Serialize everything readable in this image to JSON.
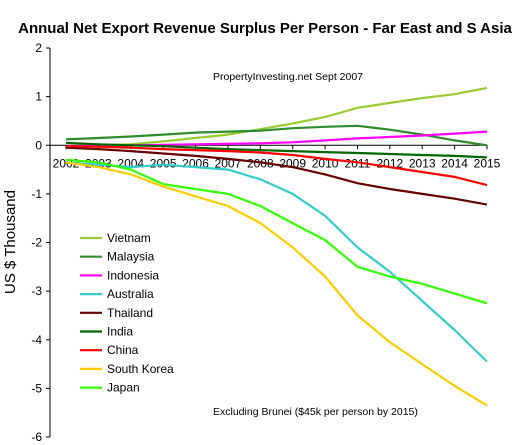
{
  "chart_data": {
    "type": "line",
    "title": "Annual Net Export Revenue Surplus Per Person -  Far East and S Asia",
    "ylabel": "US $ Thousand",
    "xlabel": "",
    "ylim": [
      -6,
      2
    ],
    "yticks": [
      2,
      1,
      0,
      -1,
      -2,
      -3,
      -4,
      -5,
      -6
    ],
    "categories": [
      "2002",
      "2003",
      "2004",
      "2005",
      "2006",
      "2007",
      "2008",
      "2009",
      "2010",
      "2011",
      "2012",
      "2013",
      "2014",
      "2015"
    ],
    "grid": false,
    "legend_position": "left",
    "annotations": [
      "PropertyInvesting.net    Sept 2007",
      "Excluding Brunei ($45k per person by 2015)"
    ],
    "series": [
      {
        "name": "Vietnam",
        "color": "#99cc33",
        "values": [
          -0.02,
          0.0,
          0.02,
          0.08,
          0.15,
          0.22,
          0.33,
          0.45,
          0.58,
          0.77,
          0.87,
          0.97,
          1.05,
          1.18
        ]
      },
      {
        "name": "Malaysia",
        "color": "#2e8b2e",
        "values": [
          0.12,
          0.15,
          0.18,
          0.22,
          0.26,
          0.28,
          0.3,
          0.35,
          0.38,
          0.4,
          0.32,
          0.22,
          0.1,
          0.0
        ]
      },
      {
        "name": "Indonesia",
        "color": "#ff00ff",
        "values": [
          -0.02,
          -0.01,
          0.0,
          0.01,
          0.02,
          0.03,
          0.04,
          0.06,
          0.1,
          0.14,
          0.17,
          0.2,
          0.24,
          0.28
        ]
      },
      {
        "name": "Australia",
        "color": "#33cccc",
        "values": [
          -0.35,
          -0.4,
          -0.45,
          -0.4,
          -0.45,
          -0.5,
          -0.7,
          -1.0,
          -1.45,
          -2.1,
          -2.6,
          -3.2,
          -3.8,
          -4.45
        ]
      },
      {
        "name": "Thailand",
        "color": "#660000",
        "values": [
          -0.05,
          -0.08,
          -0.12,
          -0.17,
          -0.22,
          -0.28,
          -0.35,
          -0.45,
          -0.6,
          -0.78,
          -0.9,
          -1.0,
          -1.1,
          -1.22
        ]
      },
      {
        "name": "India",
        "color": "#006600",
        "values": [
          0.05,
          0.02,
          0.0,
          -0.02,
          -0.05,
          -0.08,
          -0.1,
          -0.12,
          -0.14,
          -0.16,
          -0.18,
          -0.2,
          -0.22,
          -0.25
        ]
      },
      {
        "name": "China",
        "color": "#ff0000",
        "values": [
          -0.02,
          -0.03,
          -0.05,
          -0.08,
          -0.1,
          -0.12,
          -0.15,
          -0.2,
          -0.28,
          -0.35,
          -0.45,
          -0.55,
          -0.65,
          -0.82
        ]
      },
      {
        "name": "South Korea",
        "color": "#ffcc00",
        "values": [
          -0.35,
          -0.45,
          -0.6,
          -0.85,
          -1.05,
          -1.25,
          -1.6,
          -2.1,
          -2.7,
          -3.5,
          -4.05,
          -4.5,
          -4.95,
          -5.35
        ]
      },
      {
        "name": "Japan",
        "color": "#33ff00",
        "values": [
          -0.3,
          -0.35,
          -0.5,
          -0.8,
          -0.9,
          -1.0,
          -1.25,
          -1.6,
          -1.95,
          -2.5,
          -2.7,
          -2.85,
          -3.05,
          -3.25
        ]
      }
    ]
  }
}
